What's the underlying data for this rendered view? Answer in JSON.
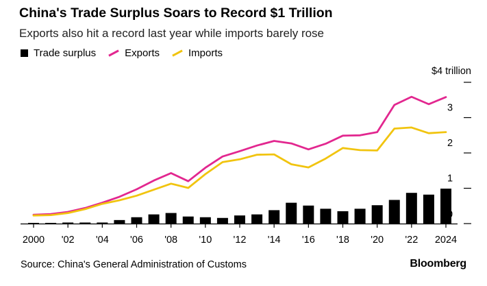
{
  "title": "China's Trade Surplus Soars to Record $1 Trillion",
  "subtitle": "Exports also hit a record last year while imports barely rose",
  "legend": {
    "surplus": "Trade surplus",
    "exports": "Exports",
    "imports": "Imports"
  },
  "colors": {
    "surplus": "#000000",
    "exports": "#e2278f",
    "imports": "#f1c40f"
  },
  "source": "Source: China's General Administration of Customs",
  "brand": "Bloomberg",
  "chart_data": {
    "type": "bar+line",
    "title": "China's Trade Surplus Soars to Record $1 Trillion",
    "subtitle": "Exports also hit a record last year while imports barely rose",
    "unit_label": "$4 trillion",
    "ylim": [
      0,
      4
    ],
    "y_ticks": [
      0,
      1,
      2,
      3,
      4
    ],
    "y_tick_labels": [
      "0",
      "1",
      "2",
      "3",
      "$4 trillion"
    ],
    "x": [
      2000,
      2001,
      2002,
      2003,
      2004,
      2005,
      2006,
      2007,
      2008,
      2009,
      2010,
      2011,
      2012,
      2013,
      2014,
      2015,
      2016,
      2017,
      2018,
      2019,
      2020,
      2021,
      2022,
      2023,
      2024
    ],
    "x_ticks": [
      2000,
      2002,
      2004,
      2006,
      2008,
      2010,
      2012,
      2014,
      2016,
      2018,
      2020,
      2022,
      2024
    ],
    "x_tick_labels": [
      "2000",
      "'02",
      "'04",
      "'06",
      "'08",
      "'10",
      "'12",
      "'14",
      "'16",
      "'18",
      "'20",
      "'22",
      "2024"
    ],
    "series": [
      {
        "name": "Trade surplus",
        "kind": "bar",
        "values": [
          0.02,
          0.02,
          0.03,
          0.03,
          0.03,
          0.1,
          0.18,
          0.26,
          0.3,
          0.2,
          0.18,
          0.16,
          0.23,
          0.26,
          0.38,
          0.59,
          0.51,
          0.42,
          0.35,
          0.42,
          0.52,
          0.67,
          0.87,
          0.82,
          0.99
        ]
      },
      {
        "name": "Exports",
        "kind": "line",
        "values": [
          0.25,
          0.27,
          0.33,
          0.44,
          0.59,
          0.76,
          0.97,
          1.22,
          1.43,
          1.2,
          1.58,
          1.9,
          2.05,
          2.21,
          2.34,
          2.27,
          2.1,
          2.26,
          2.49,
          2.5,
          2.59,
          3.36,
          3.59,
          3.38,
          3.58
        ]
      },
      {
        "name": "Imports",
        "kind": "line",
        "values": [
          0.23,
          0.24,
          0.3,
          0.41,
          0.56,
          0.66,
          0.79,
          0.96,
          1.13,
          1.01,
          1.4,
          1.74,
          1.82,
          1.95,
          1.96,
          1.68,
          1.59,
          1.84,
          2.14,
          2.08,
          2.07,
          2.69,
          2.72,
          2.56,
          2.59
        ]
      }
    ]
  }
}
